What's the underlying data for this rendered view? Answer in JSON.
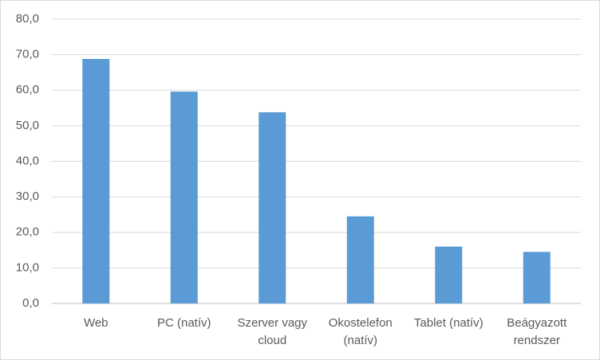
{
  "chart_data": {
    "type": "bar",
    "categories": [
      "Web",
      "PC (natív)",
      "Szerver vagy cloud",
      "Okostelefon (natív)",
      "Tablet (natív)",
      "Beágyazott rendszer"
    ],
    "values": [
      68.8,
      59.6,
      53.8,
      24.5,
      16.0,
      14.5
    ],
    "color": "#5b9bd5",
    "ylim": [
      0,
      80
    ],
    "yticks": [
      {
        "value": 0,
        "label": "0,0"
      },
      {
        "value": 10,
        "label": "10,0"
      },
      {
        "value": 20,
        "label": "20,0"
      },
      {
        "value": 30,
        "label": "30,0"
      },
      {
        "value": 40,
        "label": "40,0"
      },
      {
        "value": 50,
        "label": "50,0"
      },
      {
        "value": 60,
        "label": "60,0"
      },
      {
        "value": 70,
        "label": "70,0"
      },
      {
        "value": 80,
        "label": "80,0"
      }
    ],
    "grid": true
  }
}
